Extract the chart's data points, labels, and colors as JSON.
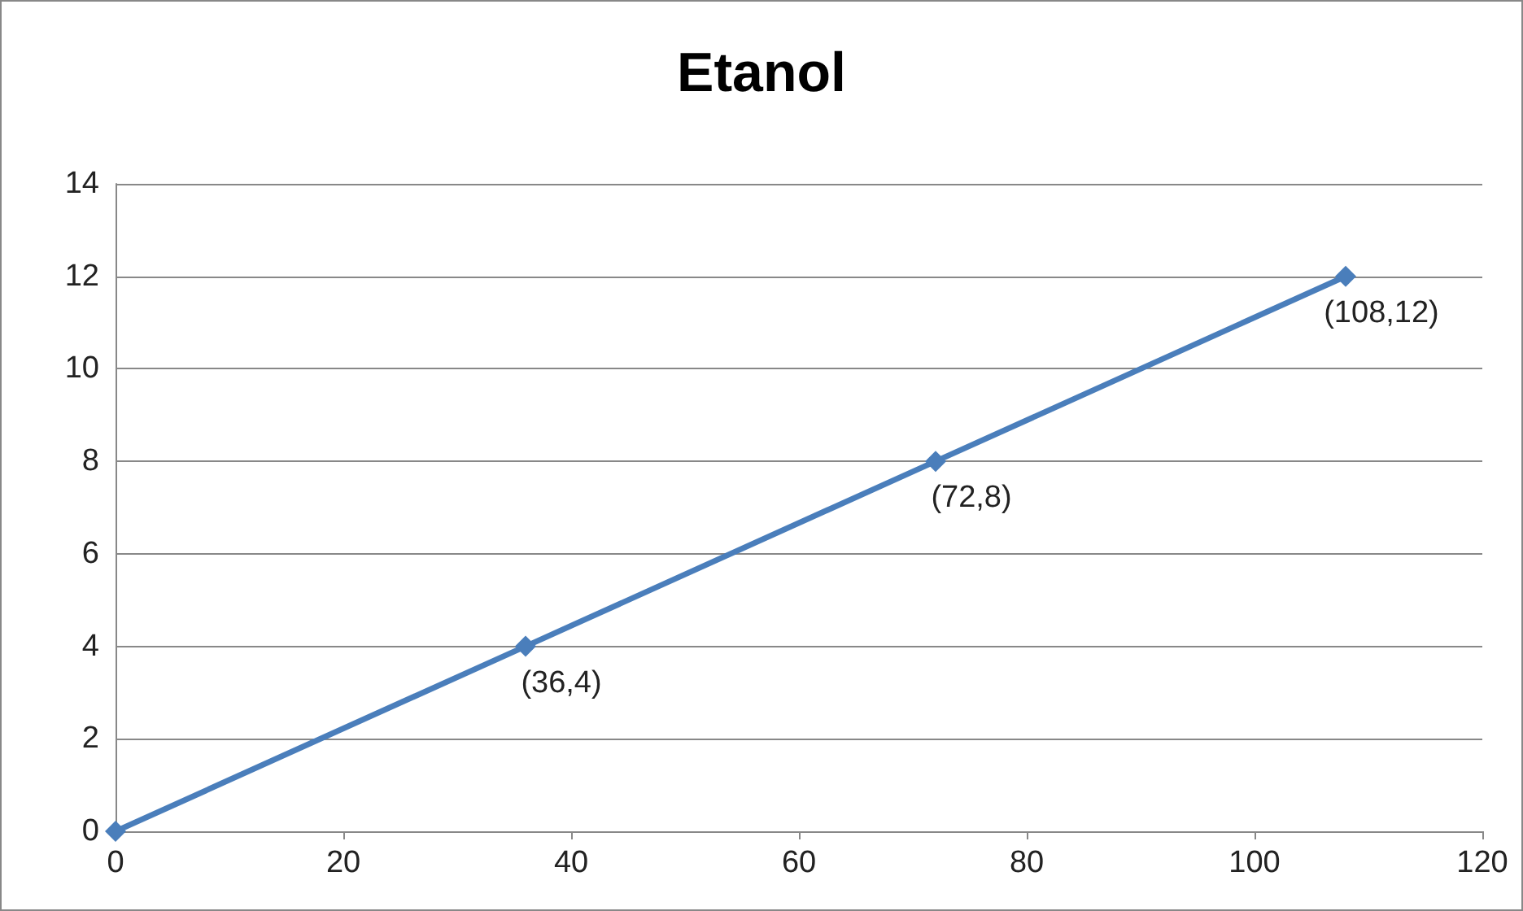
{
  "chart_data": {
    "type": "line",
    "title": "Etanol",
    "x": [
      0,
      36,
      72,
      108
    ],
    "series": [
      {
        "color": "#4a7ebb",
        "values": [
          0,
          4,
          8,
          12
        ]
      }
    ],
    "annotations": [
      {
        "text": "(36,4)",
        "x": 36,
        "y": 4
      },
      {
        "text": "(72,8)",
        "x": 72,
        "y": 8
      },
      {
        "text": "(108,12)",
        "x": 108,
        "y": 12
      }
    ],
    "xlim": [
      0,
      120
    ],
    "xticks": [
      0,
      20,
      40,
      60,
      80,
      100,
      120
    ],
    "ylim": [
      0,
      14
    ],
    "yticks": [
      0,
      2,
      4,
      6,
      8,
      10,
      12,
      14
    ],
    "grid": "y",
    "marker": "diamond",
    "line_style": "solid"
  }
}
